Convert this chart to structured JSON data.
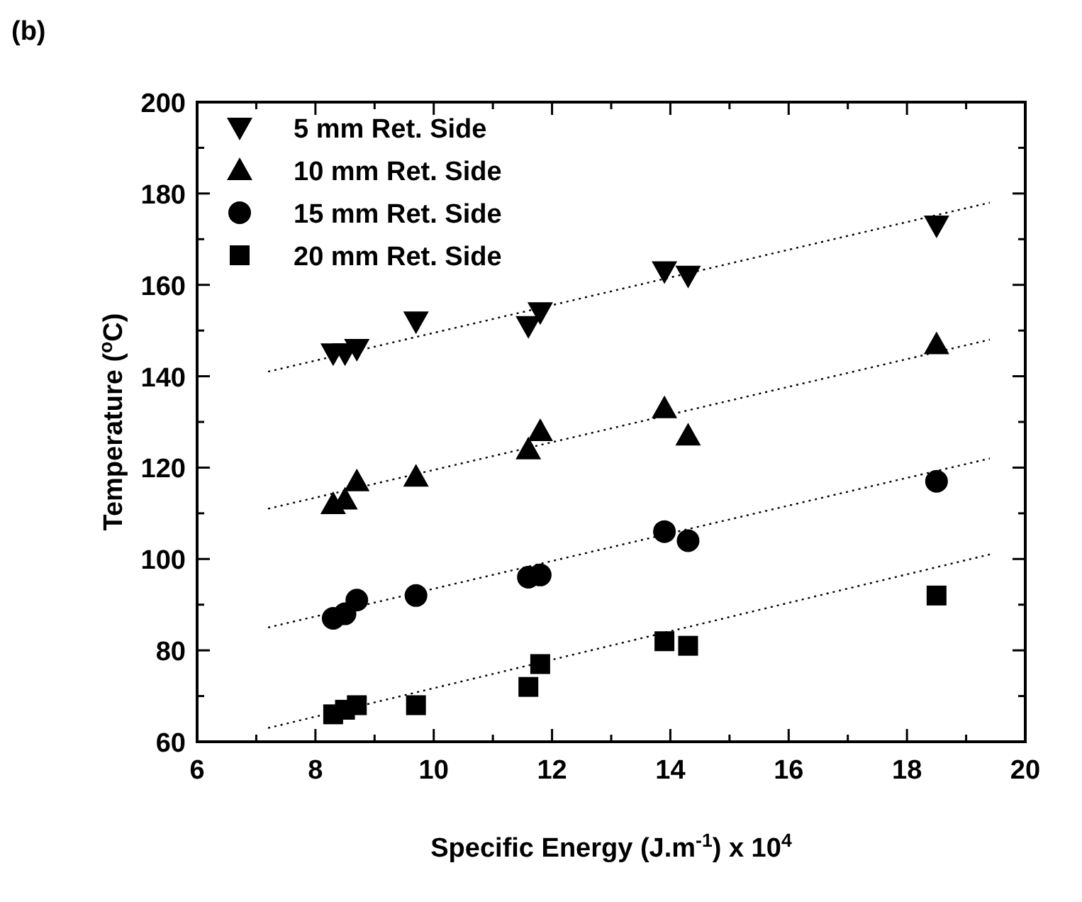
{
  "chart_data": {
    "type": "scatter",
    "title": "(b)",
    "xlabel": "Specific Energy (J.m$^{-1}$) x 10$^{4}$",
    "ylabel": "Temperature ($^{o}$C)",
    "xlim": [
      6,
      20
    ],
    "ylim": [
      60,
      200
    ],
    "xticks": [
      6,
      {
        "value": 7,
        "label": null
      },
      8,
      {
        "value": 9,
        "label": null
      },
      10,
      {
        "value": 11,
        "label": null
      },
      12,
      {
        "value": 13,
        "label": null
      },
      14,
      {
        "value": 15,
        "label": null
      },
      16,
      {
        "value": 17,
        "label": null
      },
      18,
      {
        "value": 19,
        "label": null
      },
      20
    ],
    "yticks": [
      60,
      {
        "value": 70,
        "label": null
      },
      80,
      {
        "value": 90,
        "label": null
      },
      100,
      {
        "value": 110,
        "label": null
      },
      120,
      {
        "value": 130,
        "label": null
      },
      140,
      {
        "value": 150,
        "label": null
      },
      160,
      {
        "value": 170,
        "label": null
      },
      180,
      {
        "value": 190,
        "label": null
      },
      200
    ],
    "legend": "top left",
    "grid": false,
    "series": [
      {
        "name": "5 mm Ret. Side",
        "color": "#000000",
        "marker": "triangle-down",
        "x": [
          8.3,
          8.5,
          8.7,
          9.7,
          11.6,
          11.8,
          13.9,
          14.3,
          18.5
        ],
        "values": [
          145,
          145,
          146,
          152,
          151,
          154,
          163,
          162,
          173
        ]
      },
      {
        "name": "10 mm Ret. Side",
        "color": "#000000",
        "marker": "triangle",
        "x": [
          8.3,
          8.5,
          8.7,
          9.7,
          11.6,
          11.8,
          13.9,
          14.3,
          18.5
        ],
        "values": [
          112,
          113,
          117,
          118,
          124,
          128,
          133,
          127,
          147
        ]
      },
      {
        "name": "15 mm Ret. Side",
        "color": "#000000",
        "marker": "circle",
        "x": [
          8.3,
          8.5,
          8.7,
          9.7,
          11.6,
          11.8,
          13.9,
          14.3,
          18.5
        ],
        "values": [
          87,
          88,
          91,
          92,
          96,
          96.5,
          106,
          104,
          117
        ]
      },
      {
        "name": "20 mm Ret. Side",
        "color": "#000000",
        "marker": "square",
        "x": [
          8.3,
          8.5,
          8.7,
          9.7,
          11.6,
          11.8,
          13.9,
          14.3,
          18.5
        ],
        "values": [
          66,
          67,
          68,
          68,
          72,
          77,
          82,
          81,
          92
        ]
      },
      {
        "type": "line",
        "color": "#000000",
        "line_style": "dotted",
        "x": [
          7.2,
          19.4
        ],
        "values": [
          141,
          178
        ]
      },
      {
        "type": "line",
        "color": "#000000",
        "line_style": "dotted",
        "x": [
          7.2,
          19.4
        ],
        "values": [
          111,
          148
        ]
      },
      {
        "type": "line",
        "color": "#000000",
        "line_style": "dotted",
        "x": [
          7.2,
          19.4
        ],
        "values": [
          85,
          122
        ]
      },
      {
        "type": "line",
        "color": "#000000",
        "line_style": "dotted",
        "x": [
          7.2,
          19.4
        ],
        "values": [
          63,
          101
        ]
      }
    ]
  }
}
